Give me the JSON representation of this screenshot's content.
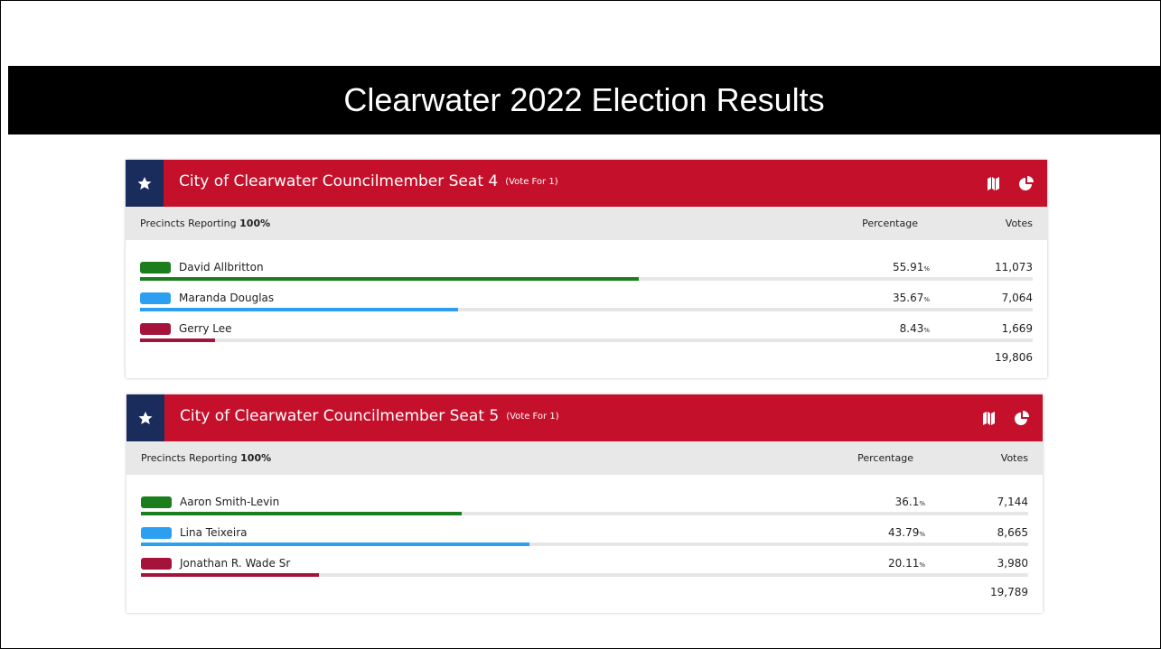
{
  "title": "Clearwater 2022 Election Results",
  "races": [
    {
      "name": "City of Clearwater Councilmember Seat 4",
      "vote_for": "(Vote For 1)",
      "precincts_label": "Precincts Reporting",
      "precincts_value": "100%",
      "percentage_header": "Percentage",
      "votes_header": "Votes",
      "unit": "%",
      "candidates": [
        {
          "name": "David Allbritton",
          "color": "#1b7d1b",
          "percentage": 55.91,
          "votes": "11,073"
        },
        {
          "name": "Maranda Douglas",
          "color": "#2c9ff0",
          "percentage": 35.67,
          "votes": "7,064"
        },
        {
          "name": "Gerry Lee",
          "color": "#a5133b",
          "percentage": 8.43,
          "votes": "1,669"
        }
      ],
      "total": "19,806"
    },
    {
      "name": "City of Clearwater Councilmember Seat 5",
      "vote_for": "(Vote For 1)",
      "precincts_label": "Precincts Reporting",
      "precincts_value": "100%",
      "percentage_header": "Percentage",
      "votes_header": "Votes",
      "unit": "%",
      "candidates": [
        {
          "name": "Aaron Smith-Levin",
          "color": "#1b7d1b",
          "percentage": 36.1,
          "votes": "7,144"
        },
        {
          "name": "Lina Teixeira",
          "color": "#2c9ff0",
          "percentage": 43.79,
          "votes": "8,665"
        },
        {
          "name": "Jonathan R. Wade Sr",
          "color": "#a5133b",
          "percentage": 20.11,
          "votes": "3,980"
        }
      ],
      "total": "19,789"
    }
  ]
}
